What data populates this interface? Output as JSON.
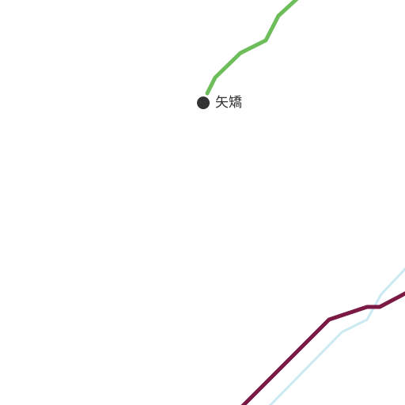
{
  "map": {
    "station": {
      "name": "矢矯",
      "marker_color": "#333333"
    },
    "routes": [
      {
        "id": "green-route",
        "color": "#6dbe5a"
      },
      {
        "id": "light-blue-route",
        "color": "#cbe9f2"
      },
      {
        "id": "maroon-route",
        "color": "#7a1a45"
      }
    ]
  }
}
